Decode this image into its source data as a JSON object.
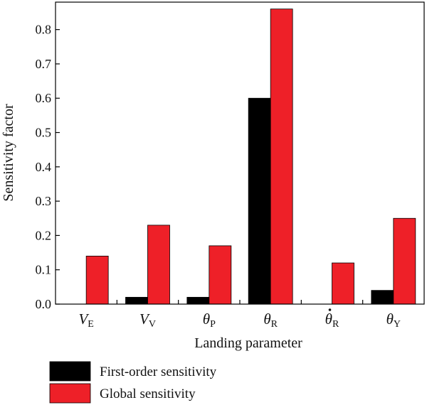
{
  "chart_data": {
    "type": "bar",
    "xlabel": "Landing parameter",
    "ylabel": "Sensitivity factor",
    "ylim": [
      0,
      0.88
    ],
    "yticks": [
      "0.0",
      "0.1",
      "0.2",
      "0.3",
      "0.4",
      "0.5",
      "0.6",
      "0.7",
      "0.8"
    ],
    "categories": [
      {
        "symbol": "V",
        "sub": "E",
        "dot": false
      },
      {
        "symbol": "V",
        "sub": "V",
        "dot": false
      },
      {
        "symbol": "θ",
        "sub": "P",
        "dot": false
      },
      {
        "symbol": "θ",
        "sub": "R",
        "dot": false
      },
      {
        "symbol": "θ",
        "sub": "R",
        "dot": true
      },
      {
        "symbol": "θ",
        "sub": "Y",
        "dot": false
      }
    ],
    "series": [
      {
        "name": "First-order sensitivity",
        "color": "#000000",
        "values": [
          0.0,
          0.02,
          0.02,
          0.6,
          0.0,
          0.04
        ]
      },
      {
        "name": "Global sensitivity",
        "color": "#ee2028",
        "values": [
          0.14,
          0.23,
          0.17,
          0.86,
          0.12,
          0.25
        ]
      }
    ],
    "legend_position": "bottom"
  }
}
